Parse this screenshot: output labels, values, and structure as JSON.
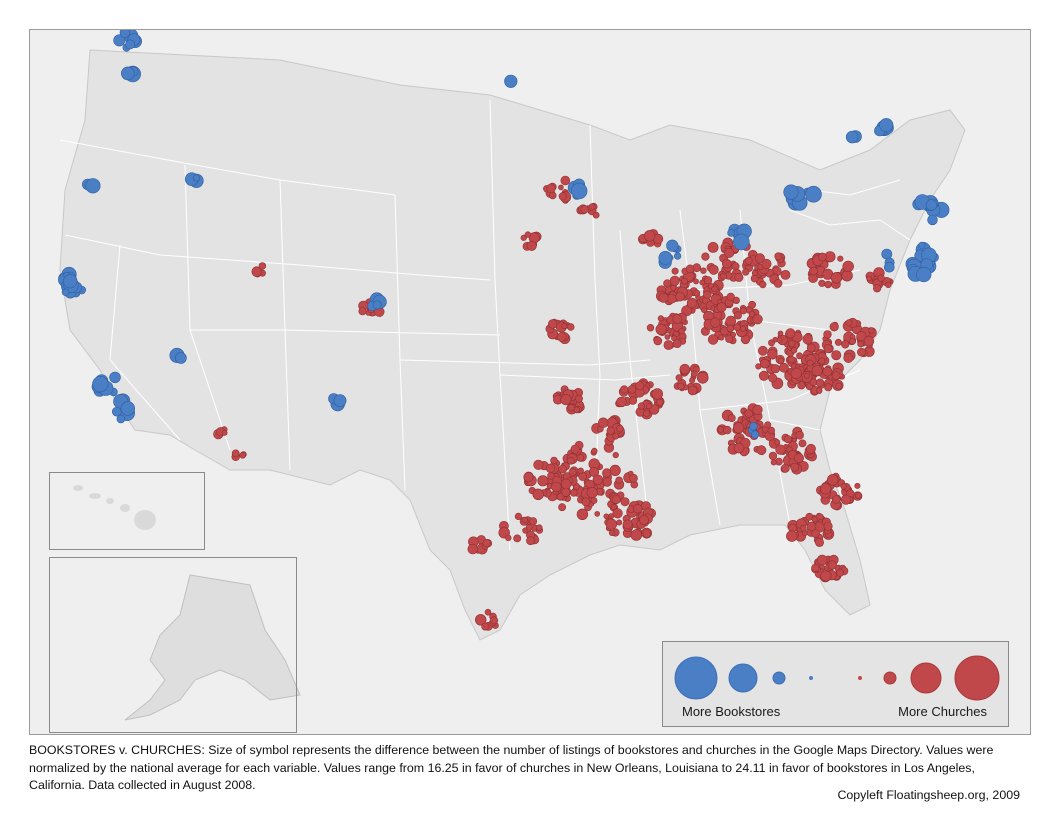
{
  "map": {
    "bookstore_color": "#4a7fc6",
    "church_color": "#c0484a",
    "land_color": "#ebebeb",
    "state_border_color": "#ffffff",
    "insets": [
      "Hawaii",
      "Alaska"
    ]
  },
  "legend": {
    "left_label": "More Bookstores",
    "right_label": "More Churches",
    "symbol_levels": [
      "large",
      "medium",
      "small",
      "tiny",
      "tiny",
      "small",
      "medium",
      "large"
    ]
  },
  "caption": {
    "text": "BOOKSTORES v. CHURCHES: Size of symbol represents the difference between the number of listings of bookstores and churches in the Google Maps Directory. Values were normalized by the national average for each variable. Values range from 16.25 in favor of churches in New Orleans, Louisiana to 24.11 in favor of bookstores in Los Angeles, California. Data collected in August 2008.",
    "credit": "Copyleft Floatingsheep.org, 2009"
  }
}
